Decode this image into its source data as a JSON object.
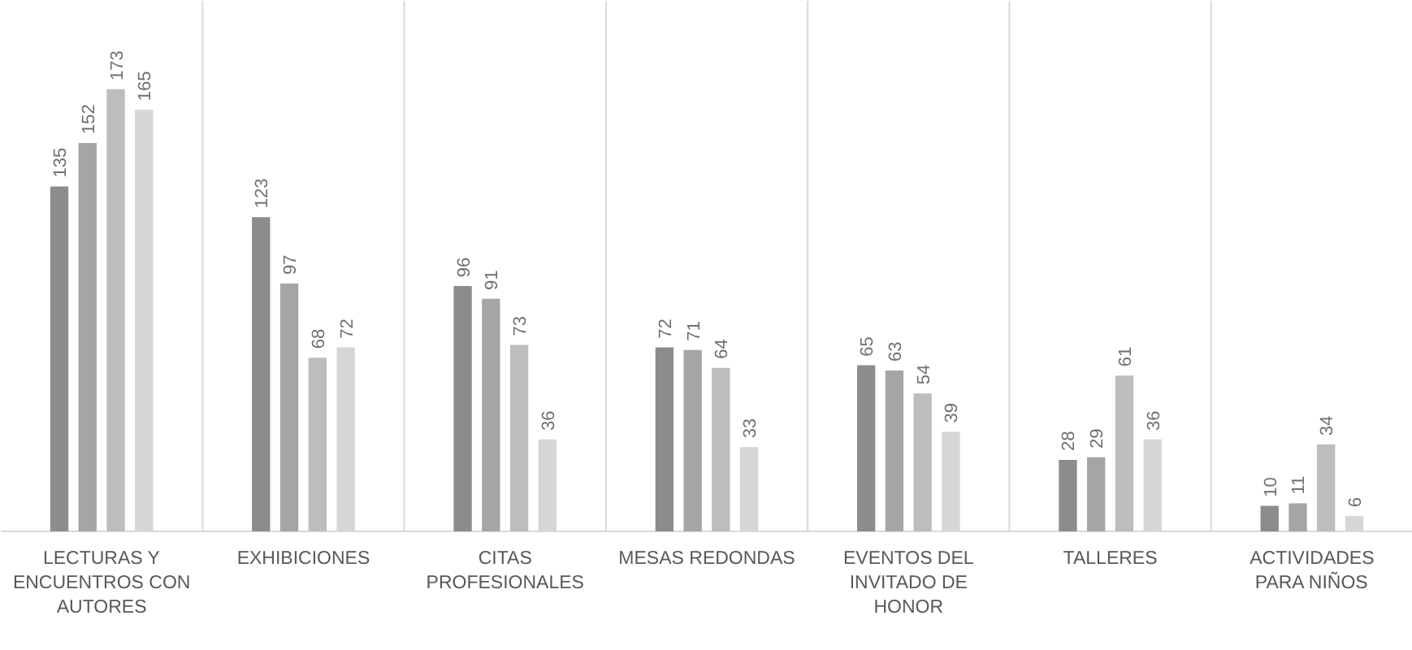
{
  "chart_data": {
    "type": "bar",
    "categories": [
      "LECTURAS Y ENCUENTROS CON AUTORES",
      "EXHIBICIONES",
      "CITAS PROFESIONALES",
      "MESAS REDONDAS",
      "EVENTOS DEL INVITADO DE HONOR",
      "TALLERES",
      "ACTIVIDADES PARA NIÑOS"
    ],
    "series": [
      {
        "color": "#8c8c8c",
        "values": [
          135,
          123,
          96,
          72,
          65,
          28,
          10
        ]
      },
      {
        "color": "#a5a5a5",
        "values": [
          152,
          97,
          91,
          71,
          63,
          29,
          11
        ]
      },
      {
        "color": "#bdbdbd",
        "values": [
          173,
          68,
          73,
          64,
          54,
          61,
          34
        ]
      },
      {
        "color": "#d6d6d6",
        "values": [
          165,
          72,
          36,
          33,
          39,
          36,
          6
        ]
      }
    ],
    "data_labels": true,
    "grid": "x",
    "tick_labels": "x"
  }
}
